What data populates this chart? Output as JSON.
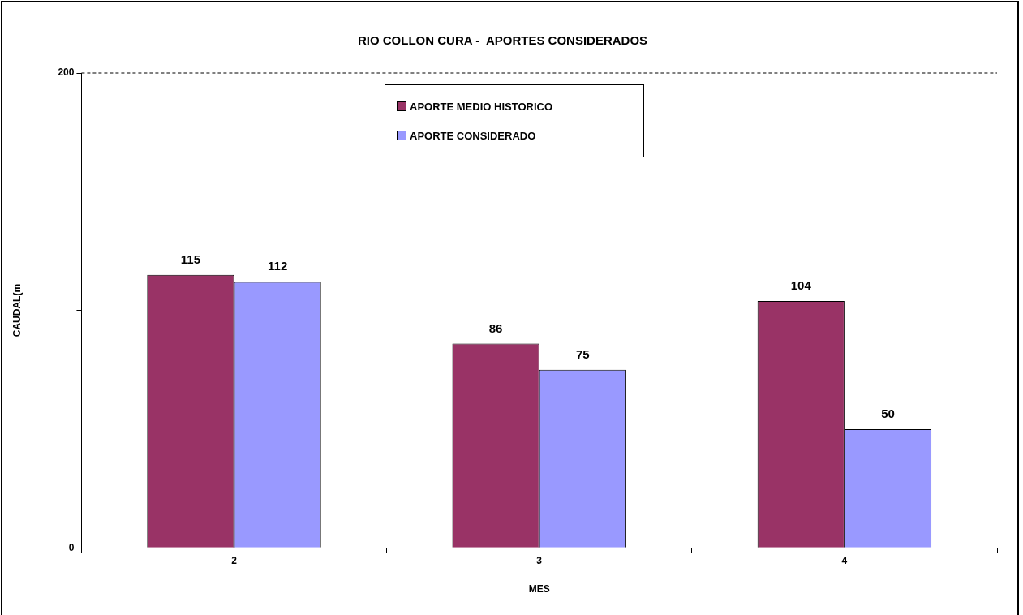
{
  "chart_data": {
    "type": "bar",
    "title": "RIO COLLON CURA -  APORTES CONSIDERADOS",
    "xlabel": "MES",
    "ylabel": "CAUDAL(m",
    "categories": [
      "2",
      "3",
      "4"
    ],
    "series": [
      {
        "name": "APORTE MEDIO HISTORICO",
        "color": "#993366",
        "values": [
          115,
          86,
          104
        ]
      },
      {
        "name": "APORTE CONSIDERADO",
        "color": "#9999ff",
        "values": [
          112,
          75,
          50
        ]
      }
    ],
    "ylim": [
      0,
      200
    ],
    "yticks": [
      0,
      {
        "value": 100,
        "label": null
      },
      200
    ],
    "ref_lines": [
      {
        "axis": "y",
        "value": 200,
        "label": null,
        "line_style": "dashed",
        "color": "#000000"
      }
    ],
    "data_labels": true,
    "legend": "top"
  }
}
